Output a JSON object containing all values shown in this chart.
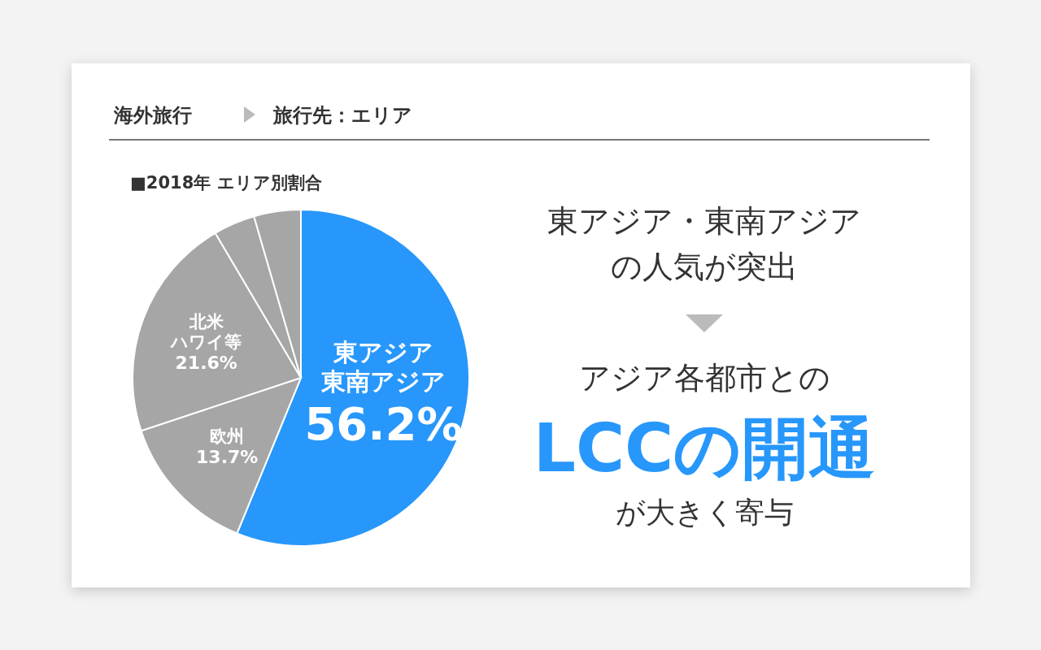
{
  "chart_data": {
    "type": "pie",
    "title": "海外旅行",
    "subtitle": "旅行先：エリア",
    "categories": [
      "東アジア東南アジア",
      "欧州",
      "北米ハワイ等",
      null,
      null
    ],
    "values": [
      56.2,
      13.7,
      21.6,
      4.0,
      4.5
    ],
    "value_labels": [
      "56.2%",
      "13.7%",
      "21.6%",
      null,
      null
    ],
    "colors": [
      "#2797fb",
      "#a6a6a6",
      "#a6a6a6",
      "#a6a6a6",
      "#a6a6a6"
    ],
    "annotations": [
      "■2018年 エリア別割合",
      "東アジア・東南アジアの人気が突出",
      "アジア各都市との",
      "LCCの開通",
      "が大きく寄与"
    ],
    "legend": false
  }
}
